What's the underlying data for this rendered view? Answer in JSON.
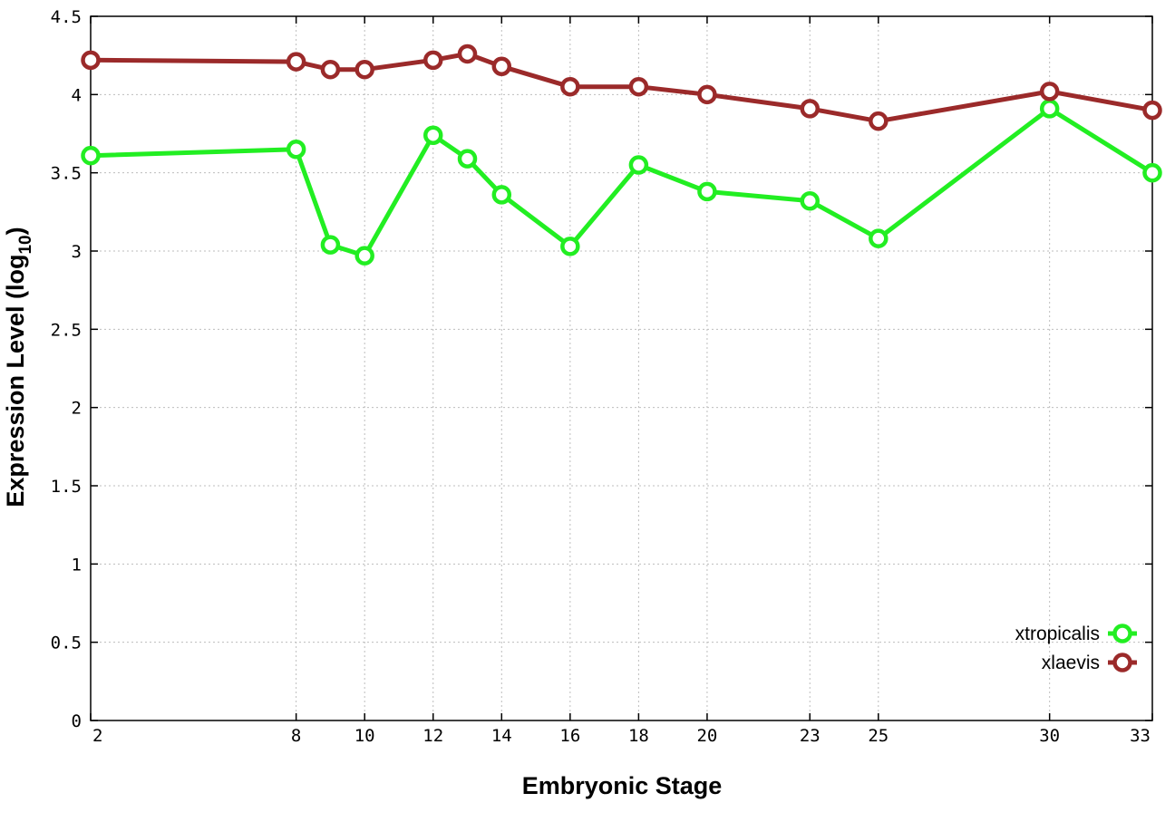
{
  "chart_data": {
    "type": "line",
    "title": "",
    "xlabel": "Embryonic Stage",
    "ylabel_main": "Expression Level (log",
    "ylabel_sub": "10",
    "ylabel_close": ")",
    "xlim": [
      2,
      33
    ],
    "ylim": [
      0,
      4.5
    ],
    "x_ticks": [
      "2",
      "8",
      "10",
      "12",
      "14",
      "16",
      "18",
      "20",
      "23",
      "25",
      "30",
      "33"
    ],
    "y_ticks": [
      "0",
      "0.5",
      "1",
      "1.5",
      "2",
      "2.5",
      "3",
      "3.5",
      "4",
      "4.5"
    ],
    "grid": true,
    "legend_position": "bottom-right",
    "x": [
      2,
      8,
      9,
      10,
      12,
      13,
      14,
      16,
      18,
      20,
      23,
      25,
      30,
      33
    ],
    "series": [
      {
        "name": "xtropicalis",
        "color": "#22ee22",
        "values": [
          3.61,
          3.65,
          3.04,
          2.97,
          3.74,
          3.59,
          3.36,
          3.03,
          3.55,
          3.38,
          3.32,
          3.08,
          3.91,
          3.5
        ]
      },
      {
        "name": "xlaevis",
        "color": "#9b2a2a",
        "values": [
          4.22,
          4.21,
          4.16,
          4.16,
          4.22,
          4.26,
          4.18,
          4.05,
          4.05,
          4.0,
          3.91,
          3.83,
          4.02,
          3.9
        ]
      }
    ]
  }
}
